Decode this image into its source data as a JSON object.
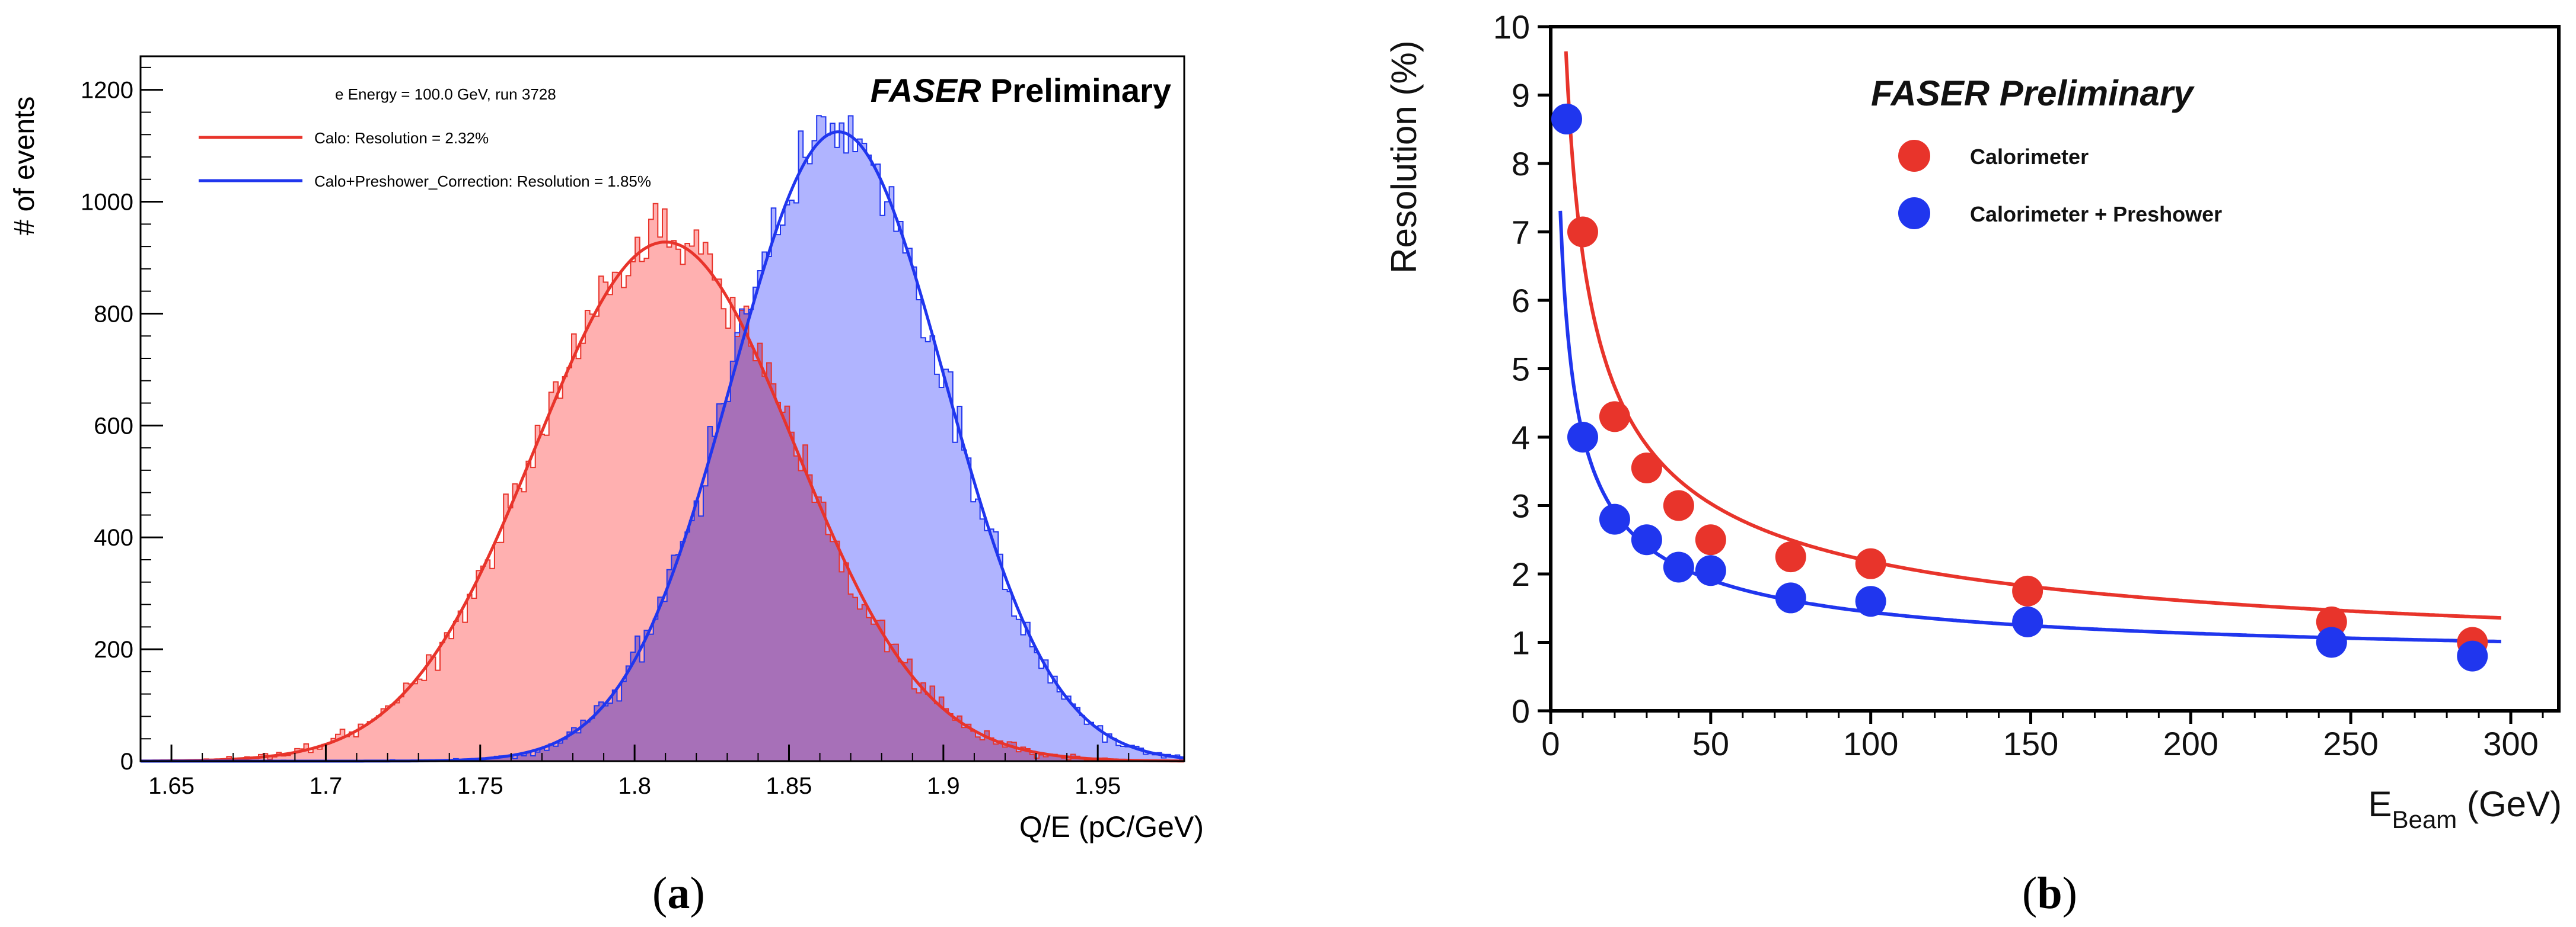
{
  "figure": {
    "panel_a_label": "a",
    "panel_b_label": "b",
    "colors": {
      "red": "#e8342b",
      "blue": "#2036ee",
      "red_fill": "#ffb0b0",
      "blue_fill": "#b0b4ff",
      "overlap_fill": "#a770b8",
      "frame": "#000000"
    }
  },
  "chart_data": [
    {
      "type": "histogram",
      "title": "e Energy = 100.0 GeV, run 3728",
      "watermark_italic": "FASER",
      "watermark_rest": " Preliminary",
      "xlabel": "Q/E (pC/GeV)",
      "ylabel": "# of events",
      "xlim": [
        1.64,
        1.978
      ],
      "ylim": [
        0,
        1260
      ],
      "xticks": [
        1.65,
        1.7,
        1.75,
        1.8,
        1.85,
        1.9,
        1.95
      ],
      "xtick_labels": [
        "1.65",
        "1.7",
        "1.75",
        "1.8",
        "1.85",
        "1.9",
        "1.95"
      ],
      "yticks": [
        0,
        200,
        400,
        600,
        800,
        1000,
        1200
      ],
      "ytick_labels": [
        "0",
        "200",
        "400",
        "600",
        "800",
        "1000",
        "1200"
      ],
      "legend_position": "top-left",
      "series": [
        {
          "name": "Calo: Resolution = 2.32%",
          "color": "#e8342b",
          "fill": "#ffb0b0",
          "gauss_mean": 1.81,
          "gauss_sigma": 0.042,
          "gauss_amplitude": 928
        },
        {
          "name": "Calo+Preshower_Correction: Resolution = 1.85%",
          "color": "#2036ee",
          "fill": "#b0b4ff",
          "gauss_mean": 1.866,
          "gauss_sigma": 0.0345,
          "gauss_amplitude": 1125
        }
      ]
    },
    {
      "type": "scatter",
      "watermark": "FASER Preliminary",
      "xlabel_main": "E",
      "xlabel_sub": "Beam",
      "xlabel_unit": " (GeV)",
      "ylabel": "Resolution (%)",
      "xlim": [
        0,
        315
      ],
      "ylim": [
        0,
        10
      ],
      "xticks": [
        0,
        50,
        100,
        150,
        200,
        250,
        300
      ],
      "xtick_labels": [
        "0",
        "50",
        "100",
        "150",
        "200",
        "250",
        "300"
      ],
      "yticks": [
        0,
        1,
        2,
        3,
        4,
        5,
        6,
        7,
        8,
        9,
        10
      ],
      "ytick_labels": [
        "0",
        "1",
        "2",
        "3",
        "4",
        "5",
        "6",
        "7",
        "8",
        "9",
        "10"
      ],
      "legend_position": "top-left",
      "series": [
        {
          "name": "Calorimeter",
          "color": "#e8342b",
          "x": [
            10,
            20,
            30,
            40,
            50,
            75,
            100,
            149,
            244,
            288
          ],
          "y": [
            7.0,
            4.3,
            3.55,
            3.0,
            2.5,
            2.25,
            2.15,
            1.75,
            1.3,
            1.0
          ],
          "fit": {
            "a": 21.0,
            "c": 0.6
          }
        },
        {
          "name": "Calorimeter + Preshower",
          "color": "#2036ee",
          "x": [
            5,
            10,
            20,
            30,
            40,
            50,
            75,
            100,
            149,
            244,
            288
          ],
          "y": [
            8.65,
            4.0,
            2.8,
            2.5,
            2.1,
            2.05,
            1.65,
            1.6,
            1.3,
            1.0,
            0.8
          ],
          "fit": {
            "a": 12.6,
            "c": 0.7
          }
        }
      ]
    }
  ]
}
